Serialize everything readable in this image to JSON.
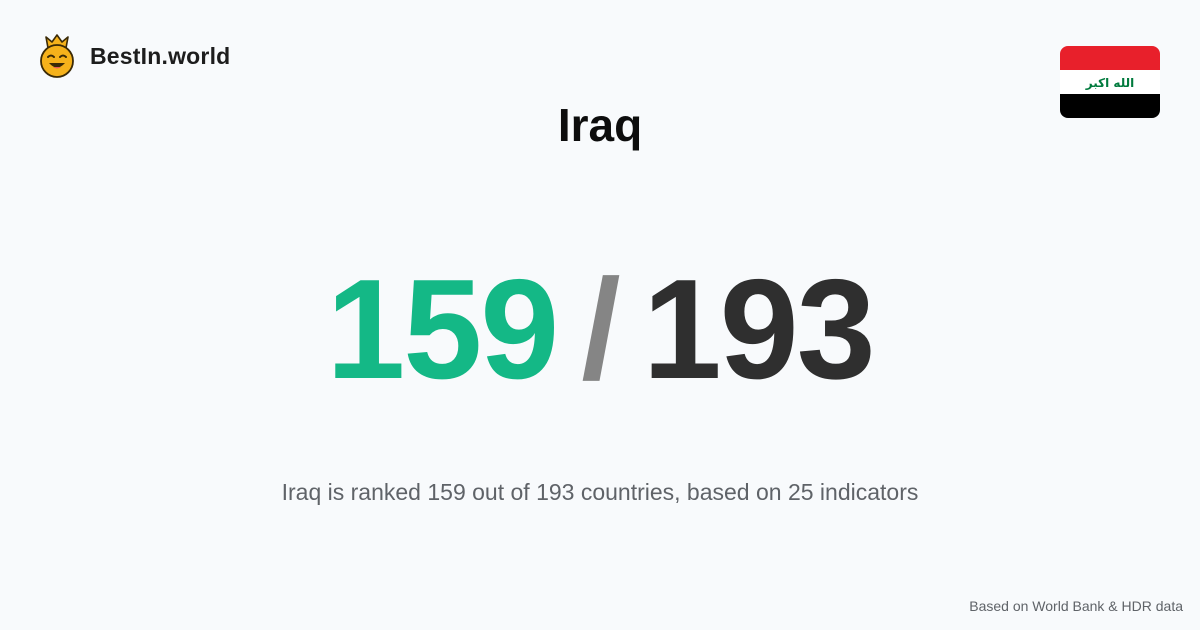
{
  "brand": {
    "name": "BestIn.world",
    "logo_icon": "crowned-smiley-icon"
  },
  "country": {
    "name": "Iraq",
    "flag_icon": "iraq-flag-icon",
    "flag_text": "الله اكبر",
    "flag_colors": [
      "#e8202b",
      "#ffffff",
      "#000000"
    ],
    "flag_text_color": "#007a3d"
  },
  "ranking": {
    "rank": "159",
    "separator": "/",
    "total": "193",
    "rank_color": "#14b886"
  },
  "summary": "Iraq is ranked 159 out of 193 countries, based on 25 indicators",
  "source": "Based on World Bank & HDR data"
}
